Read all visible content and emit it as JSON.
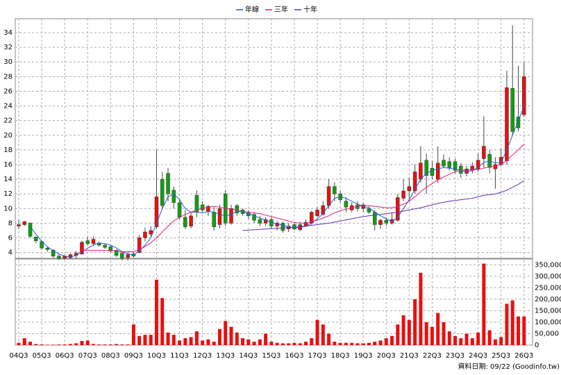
{
  "chart_data": [
    {
      "type": "candlestick",
      "categories": [
        "04Q3",
        null,
        null,
        null,
        "05Q3",
        null,
        null,
        null,
        "06Q3",
        null,
        null,
        null,
        "07Q3",
        null,
        null,
        null,
        "08Q3",
        null,
        null,
        null,
        "09Q3",
        null,
        null,
        null,
        "10Q3",
        null,
        null,
        null,
        "11Q3",
        null,
        null,
        null,
        "12Q3",
        null,
        null,
        null,
        "13Q3",
        null,
        null,
        null,
        "14Q3",
        null,
        null,
        null,
        "15Q3",
        null,
        null,
        null,
        "16Q3",
        null,
        null,
        null,
        "17Q3",
        null,
        null,
        null,
        "18Q3",
        null,
        null,
        null,
        "19Q3",
        null,
        null,
        null,
        "20Q3",
        null,
        null,
        null,
        "21Q3",
        null,
        null,
        null,
        "22Q3",
        null,
        null,
        null,
        "23Q3",
        null,
        null,
        null,
        "24Q3",
        null,
        null,
        null,
        "25Q3",
        null,
        null,
        null,
        "26Q3"
      ],
      "open": [
        7.6,
        7.8,
        8.0,
        6.1,
        5.5,
        4.6,
        4.3,
        3.5,
        3.2,
        3.3,
        3.6,
        3.8,
        5.6,
        5.2,
        5.3,
        5.0,
        4.8,
        4.3,
        3.9,
        3.3,
        3.8,
        4.0,
        6.0,
        6.5,
        7.5,
        14,
        14.8,
        12.5,
        10.8,
        8.8,
        7.6,
        11.8,
        10.5,
        9.6,
        9.5,
        7.8,
        12,
        8,
        10.4,
        9.8,
        9.4,
        9.2,
        8.5,
        8,
        8.5,
        7.6,
        8,
        7.2,
        7.8,
        7.1,
        7.6,
        8,
        9,
        9.2,
        10.4,
        13,
        12,
        11,
        9.8,
        10.5,
        10,
        10,
        9.5,
        7.8,
        8.4,
        8,
        8.4,
        11.4,
        12.4,
        12.4,
        14,
        16.6,
        15.5,
        14,
        16.6,
        16.4,
        16.4,
        15.8,
        14.8,
        15.2,
        15.4,
        16.8,
        17.4,
        15.4,
        16,
        16.5,
        26.4,
        22.5,
        22.8
      ],
      "high": [
        8.5,
        8.3,
        8.1,
        6.2,
        5.6,
        4.8,
        4.5,
        3.8,
        3.7,
        3.9,
        4.2,
        5.6,
        6.1,
        6.2,
        5.5,
        5.2,
        4.9,
        4.4,
        4.2,
        4.0,
        4.0,
        6.4,
        7.4,
        7.6,
        18,
        15,
        15.5,
        13,
        11.2,
        9.8,
        9.5,
        12.5,
        11,
        10.5,
        10.2,
        10.5,
        12.5,
        10.5,
        10.6,
        10,
        9.8,
        9.5,
        9,
        8.8,
        8.8,
        8.3,
        8.2,
        8,
        8,
        8.2,
        8.5,
        9.7,
        10.2,
        11,
        14,
        13.6,
        12.4,
        11.5,
        10.8,
        11,
        10.8,
        10.3,
        9.8,
        8.6,
        8.8,
        9.5,
        12,
        14,
        14.2,
        16,
        18.5,
        17.5,
        16.5,
        18.5,
        17.4,
        17,
        16.8,
        16.2,
        15.8,
        16.3,
        17.5,
        22.6,
        18,
        17,
        18.2,
        28.8,
        35,
        29.5,
        30
      ],
      "low": [
        7.2,
        7.6,
        6.0,
        5.3,
        4.4,
        4.1,
        3.3,
        3.0,
        3.0,
        3.1,
        3.2,
        3.7,
        5.0,
        5.0,
        4.8,
        4.5,
        4.0,
        3.4,
        2.9,
        2.9,
        3.3,
        3.9,
        5.5,
        6.2,
        7.2,
        10,
        11,
        10,
        8.5,
        7.2,
        7.3,
        8.8,
        9.5,
        9,
        7,
        7.3,
        7.6,
        7.8,
        9,
        9,
        8.6,
        8,
        7.6,
        7.6,
        7.3,
        7,
        6.7,
        6.8,
        7,
        6.9,
        7.5,
        7.8,
        8.8,
        9,
        10,
        11,
        10.8,
        9.5,
        9.5,
        9.6,
        9.5,
        9.3,
        7,
        7.2,
        7.6,
        7.8,
        8.2,
        11,
        11,
        12,
        13.5,
        12,
        14,
        13.5,
        15.5,
        15.2,
        14.8,
        14.2,
        14.4,
        14.8,
        15,
        15.5,
        14.8,
        12.7,
        15.8,
        16,
        20,
        20.5,
        22.5
      ],
      "close": [
        7.8,
        8.2,
        6.2,
        5.6,
        4.6,
        4.4,
        3.5,
        3.2,
        3.5,
        3.7,
        3.9,
        5.4,
        5.2,
        5.8,
        5.0,
        4.7,
        4.2,
        3.6,
        3.2,
        3.7,
        3.5,
        6.0,
        6.8,
        7.0,
        11.6,
        10.4,
        12,
        10.8,
        8.8,
        7.5,
        9.0,
        9.5,
        9.8,
        10.3,
        7.5,
        10,
        8,
        10,
        9.4,
        9.3,
        9.0,
        8.4,
        8.0,
        8.5,
        7.6,
        8,
        7,
        7.6,
        7.2,
        7.8,
        8.1,
        9.5,
        9.8,
        10.4,
        13,
        12,
        11.2,
        10.2,
        10.4,
        10,
        10.5,
        9.5,
        7.8,
        8.4,
        8,
        8.5,
        11.5,
        12.4,
        13,
        15,
        16.2,
        14.5,
        14.5,
        16.2,
        15.8,
        15.6,
        15.2,
        14.8,
        15.4,
        15.8,
        16.6,
        18.5,
        15.6,
        16,
        17,
        26.5,
        20.5,
        21,
        28
      ],
      "up_color": "#e81010",
      "down_color": "#10a010",
      "series": [
        {
          "name": "年線",
          "color": "#2060d0",
          "values": [
            null,
            null,
            7.5,
            6.5,
            5.5,
            4.8,
            4.2,
            3.8,
            3.5,
            3.4,
            3.6,
            4.1,
            4.6,
            5.0,
            5.3,
            5.2,
            5.0,
            4.6,
            4.1,
            3.8,
            3.7,
            4.2,
            5.0,
            6.0,
            8.0,
            10.0,
            11.6,
            12.0,
            11.2,
            10.0,
            9.5,
            9.5,
            9.4,
            9.6,
            9.5,
            9.2,
            9.0,
            9.2,
            9.6,
            9.6,
            9.3,
            9.0,
            8.7,
            8.4,
            8.1,
            7.9,
            7.7,
            7.5,
            7.4,
            7.4,
            7.6,
            8.0,
            8.6,
            9.3,
            10.4,
            11.4,
            11.6,
            11.4,
            11.0,
            10.6,
            10.3,
            10.1,
            9.5,
            9.0,
            8.6,
            8.2,
            8.8,
            10.0,
            11.2,
            12.6,
            14.0,
            14.8,
            15.2,
            15.4,
            15.6,
            15.5,
            15.4,
            15.2,
            15.0,
            15.2,
            15.6,
            16.3,
            16.5,
            16.2,
            16.3,
            18.0,
            20.0,
            22.0,
            24.0
          ]
        },
        {
          "name": "三年",
          "color": "#e0207a",
          "values": [
            null,
            null,
            null,
            null,
            null,
            null,
            null,
            null,
            null,
            null,
            null,
            4.3,
            4.3,
            4.3,
            4.3,
            4.3,
            4.3,
            4.2,
            4.1,
            4.1,
            4.1,
            4.4,
            4.8,
            5.3,
            6.0,
            6.8,
            7.6,
            8.3,
            8.8,
            9.2,
            9.5,
            9.8,
            10.0,
            10.2,
            10.3,
            10.2,
            10.0,
            9.9,
            9.8,
            9.6,
            9.5,
            9.4,
            9.3,
            9.1,
            8.9,
            8.7,
            8.5,
            8.3,
            8.1,
            8.0,
            8.0,
            8.2,
            8.4,
            8.7,
            9.0,
            9.4,
            9.7,
            9.9,
            10.1,
            10.3,
            10.4,
            10.4,
            10.3,
            10.2,
            10.1,
            10.1,
            10.3,
            10.6,
            11.0,
            11.6,
            12.3,
            12.9,
            13.4,
            13.9,
            14.3,
            14.7,
            15.0,
            15.2,
            15.3,
            15.3,
            15.3,
            15.5,
            15.7,
            15.8,
            16.0,
            16.6,
            17.3,
            18.0,
            18.8
          ]
        },
        {
          "name": "十年",
          "color": "#6030b0",
          "values": [
            null,
            null,
            null,
            null,
            null,
            null,
            null,
            null,
            null,
            null,
            null,
            null,
            null,
            null,
            null,
            null,
            null,
            null,
            null,
            null,
            null,
            null,
            null,
            null,
            null,
            null,
            null,
            null,
            null,
            null,
            null,
            null,
            null,
            null,
            null,
            null,
            null,
            null,
            null,
            7.0,
            7.05,
            7.1,
            7.15,
            7.2,
            7.25,
            7.3,
            7.35,
            7.4,
            7.45,
            7.5,
            7.6,
            7.7,
            7.8,
            7.9,
            8.0,
            8.15,
            8.3,
            8.45,
            8.6,
            8.75,
            8.9,
            9.0,
            9.1,
            9.2,
            9.3,
            9.4,
            9.5,
            9.65,
            9.8,
            9.95,
            10.1,
            10.3,
            10.5,
            10.7,
            10.85,
            11.0,
            11.1,
            11.2,
            11.3,
            11.4,
            11.6,
            11.8,
            11.9,
            12.0,
            12.2,
            12.5,
            12.9,
            13.3,
            13.8
          ]
        }
      ],
      "ylim": [
        3.2,
        35.9
      ],
      "yticks": [
        4,
        6,
        8,
        10,
        12,
        14,
        16,
        18,
        20,
        22,
        24,
        26,
        28,
        30,
        32,
        34
      ],
      "grid": true,
      "legend": "top"
    },
    {
      "type": "bar",
      "color": "#e81010",
      "values": [
        10000,
        30000,
        15000,
        5000,
        3000,
        2000,
        2000,
        3000,
        3000,
        5000,
        8000,
        18000,
        20000,
        5000,
        3000,
        3000,
        3000,
        5000,
        3000,
        3000,
        90000,
        40000,
        45000,
        45000,
        285000,
        205000,
        55000,
        45000,
        20000,
        30000,
        35000,
        60000,
        20000,
        25000,
        15000,
        70000,
        105000,
        80000,
        55000,
        30000,
        25000,
        15000,
        25000,
        50000,
        15000,
        10000,
        8000,
        8000,
        10000,
        8000,
        15000,
        30000,
        110000,
        90000,
        50000,
        15000,
        10000,
        10000,
        10000,
        8000,
        8000,
        10000,
        15000,
        20000,
        30000,
        40000,
        90000,
        130000,
        110000,
        200000,
        315000,
        100000,
        80000,
        140000,
        100000,
        60000,
        40000,
        30000,
        50000,
        30000,
        55000,
        355000,
        65000,
        25000,
        35000,
        180000,
        195000,
        125000,
        125000
      ],
      "ylim": [
        0,
        375000
      ],
      "yticks": [
        0,
        {
          "value": 50000,
          "label": "50,000"
        },
        {
          "value": 100000,
          "label": "100,000"
        },
        {
          "value": 150000,
          "label": "150,000"
        },
        {
          "value": 200000,
          "label": "200,000"
        },
        {
          "value": 250000,
          "label": "250,000"
        },
        {
          "value": 300000,
          "label": "300,000"
        },
        {
          "value": 350000,
          "label": "350,000"
        }
      ],
      "grid": true
    }
  ],
  "footer": "資料日期: 09/22 (Goodinfo.tw)"
}
